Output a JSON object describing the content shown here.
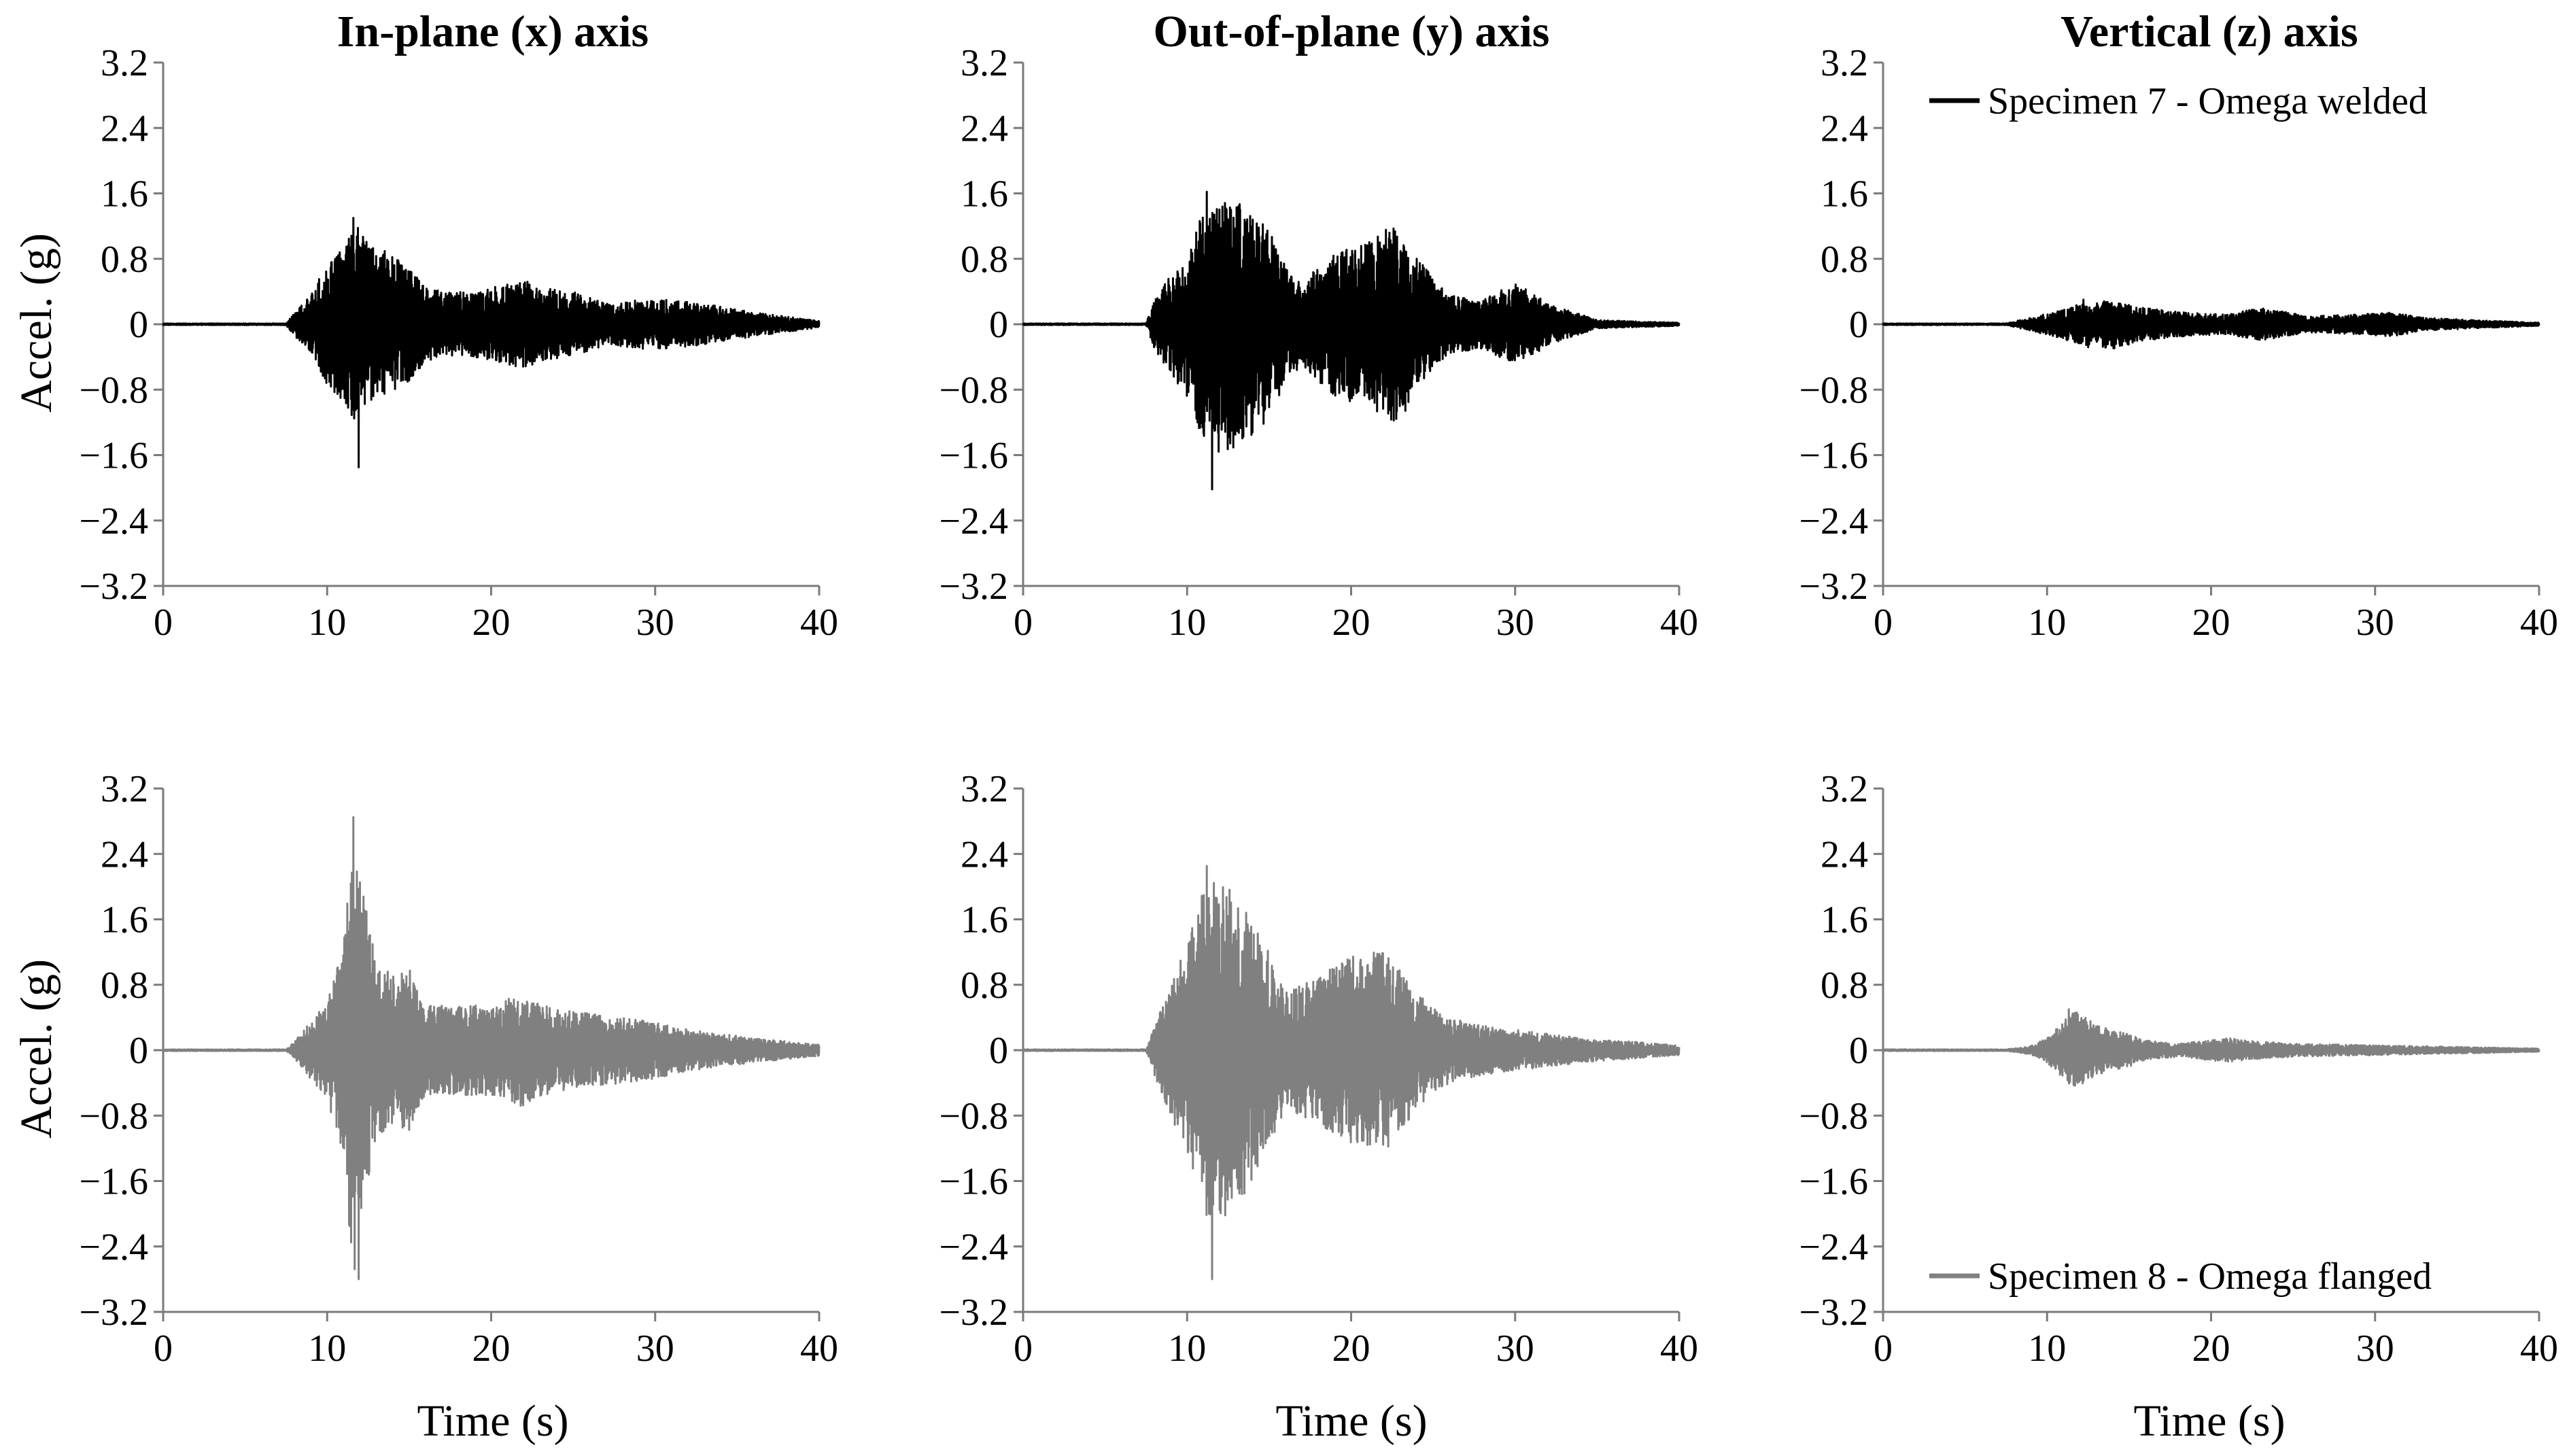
{
  "chart_data": {
    "type": "line",
    "layout": "2x3 grid of time-history panels",
    "column_titles": [
      "In-plane (x) axis",
      "Out-of-plane (y) axis",
      "Vertical (z) axis"
    ],
    "ylabel": "Accel. (g)",
    "xlabel": "Time (s)",
    "xlim": [
      0,
      40
    ],
    "ylim": [
      -3.2,
      3.2
    ],
    "xticks": [
      "0",
      "10",
      "20",
      "30",
      "40"
    ],
    "yticks": [
      "3.2",
      "2.4",
      "1.6",
      "0.8",
      "0",
      "-0.8",
      "-1.6",
      "-2.4",
      "-3.2"
    ],
    "grid": false,
    "series": [
      {
        "name": "Specimen 7 - Omega welded",
        "color": "#000000",
        "legend_position": "top-right of top-right panel",
        "panels": [
          {
            "axis": "x",
            "envelope": [
              [
                0,
                0.01
              ],
              [
                7.5,
                0.01
              ],
              [
                8,
                0.15
              ],
              [
                9,
                0.35
              ],
              [
                10,
                0.75
              ],
              [
                11,
                0.95
              ],
              [
                11.8,
                1.25
              ],
              [
                12.5,
                1.0
              ],
              [
                13.5,
                0.9
              ],
              [
                15,
                0.7
              ],
              [
                16,
                0.45
              ],
              [
                17,
                0.4
              ],
              [
                19,
                0.4
              ],
              [
                21,
                0.5
              ],
              [
                22,
                0.55
              ],
              [
                23,
                0.45
              ],
              [
                25,
                0.4
              ],
              [
                27,
                0.25
              ],
              [
                29,
                0.3
              ],
              [
                31,
                0.3
              ],
              [
                33,
                0.25
              ],
              [
                35,
                0.18
              ],
              [
                37,
                0.12
              ],
              [
                40,
                0.04
              ]
            ],
            "peak_max": 1.3,
            "peak_min": -1.75,
            "peak_min_time": 11.9
          },
          {
            "axis": "y",
            "envelope": [
              [
                0,
                0.01
              ],
              [
                7.5,
                0.01
              ],
              [
                8,
                0.3
              ],
              [
                9,
                0.6
              ],
              [
                10,
                0.9
              ],
              [
                11,
                1.45
              ],
              [
                12,
                1.6
              ],
              [
                13,
                1.5
              ],
              [
                14,
                1.35
              ],
              [
                15,
                1.15
              ],
              [
                16,
                0.7
              ],
              [
                17,
                0.5
              ],
              [
                18,
                0.7
              ],
              [
                19,
                0.9
              ],
              [
                20,
                0.95
              ],
              [
                21,
                1.0
              ],
              [
                22,
                1.15
              ],
              [
                23,
                1.2
              ],
              [
                24,
                0.85
              ],
              [
                25,
                0.55
              ],
              [
                26,
                0.35
              ],
              [
                28,
                0.3
              ],
              [
                30,
                0.5
              ],
              [
                31,
                0.4
              ],
              [
                32,
                0.25
              ],
              [
                34,
                0.12
              ],
              [
                35,
                0.05
              ],
              [
                40,
                0.02
              ]
            ],
            "peak_max": 1.62,
            "peak_min": -2.02,
            "peak_min_time": 11.5
          },
          {
            "axis": "z",
            "envelope": [
              [
                0,
                0.01
              ],
              [
                7.5,
                0.01
              ],
              [
                9,
                0.08
              ],
              [
                11,
                0.18
              ],
              [
                12,
                0.25
              ],
              [
                14,
                0.3
              ],
              [
                16,
                0.2
              ],
              [
                18,
                0.15
              ],
              [
                21,
                0.12
              ],
              [
                23,
                0.2
              ],
              [
                26,
                0.1
              ],
              [
                29,
                0.12
              ],
              [
                31,
                0.15
              ],
              [
                33,
                0.08
              ],
              [
                36,
                0.05
              ],
              [
                40,
                0.02
              ]
            ],
            "peak_max": 0.3,
            "peak_min": -0.28,
            "peak_min_time": 12.5
          }
        ]
      },
      {
        "name": "Specimen 8 - Omega flanged",
        "color": "#808080",
        "legend_position": "bottom-right of bottom-right panel",
        "panels": [
          {
            "axis": "x",
            "envelope": [
              [
                0,
                0.01
              ],
              [
                7.5,
                0.01
              ],
              [
                8,
                0.1
              ],
              [
                9,
                0.35
              ],
              [
                10,
                0.6
              ],
              [
                11,
                1.3
              ],
              [
                11.6,
                2.85
              ],
              [
                12.4,
                1.7
              ],
              [
                13,
                1.1
              ],
              [
                14,
                0.9
              ],
              [
                15,
                1.0
              ],
              [
                16,
                0.55
              ],
              [
                18,
                0.55
              ],
              [
                20,
                0.55
              ],
              [
                22,
                0.7
              ],
              [
                24,
                0.5
              ],
              [
                26,
                0.45
              ],
              [
                28,
                0.4
              ],
              [
                30,
                0.35
              ],
              [
                32,
                0.25
              ],
              [
                34,
                0.2
              ],
              [
                36,
                0.15
              ],
              [
                40,
                0.07
              ]
            ],
            "peak_max": 2.85,
            "peak_min": -2.8,
            "peak_min_time": 11.9
          },
          {
            "axis": "y",
            "envelope": [
              [
                0,
                0.01
              ],
              [
                7.5,
                0.01
              ],
              [
                8,
                0.3
              ],
              [
                9,
                0.8
              ],
              [
                10,
                1.3
              ],
              [
                11,
                2.0
              ],
              [
                12,
                2.1
              ],
              [
                13,
                1.9
              ],
              [
                14,
                1.6
              ],
              [
                15,
                1.2
              ],
              [
                16,
                0.7
              ],
              [
                18,
                0.9
              ],
              [
                20,
                1.15
              ],
              [
                22,
                1.25
              ],
              [
                23,
                1.0
              ],
              [
                24,
                0.7
              ],
              [
                26,
                0.4
              ],
              [
                28,
                0.3
              ],
              [
                30,
                0.25
              ],
              [
                32,
                0.2
              ],
              [
                34,
                0.15
              ],
              [
                40,
                0.06
              ]
            ],
            "peak_max": 2.25,
            "peak_min": -2.8,
            "peak_min_time": 11.5
          },
          {
            "axis": "z",
            "envelope": [
              [
                0,
                0.01
              ],
              [
                7.5,
                0.01
              ],
              [
                9,
                0.05
              ],
              [
                10,
                0.15
              ],
              [
                11,
                0.35
              ],
              [
                11.8,
                0.5
              ],
              [
                13,
                0.3
              ],
              [
                15,
                0.2
              ],
              [
                16,
                0.12
              ],
              [
                18,
                0.08
              ],
              [
                21,
                0.15
              ],
              [
                22,
                0.12
              ],
              [
                25,
                0.08
              ],
              [
                30,
                0.06
              ],
              [
                35,
                0.04
              ],
              [
                40,
                0.02
              ]
            ],
            "peak_max": 0.5,
            "peak_min": -0.42,
            "peak_min_time": 11.6
          }
        ]
      }
    ]
  }
}
